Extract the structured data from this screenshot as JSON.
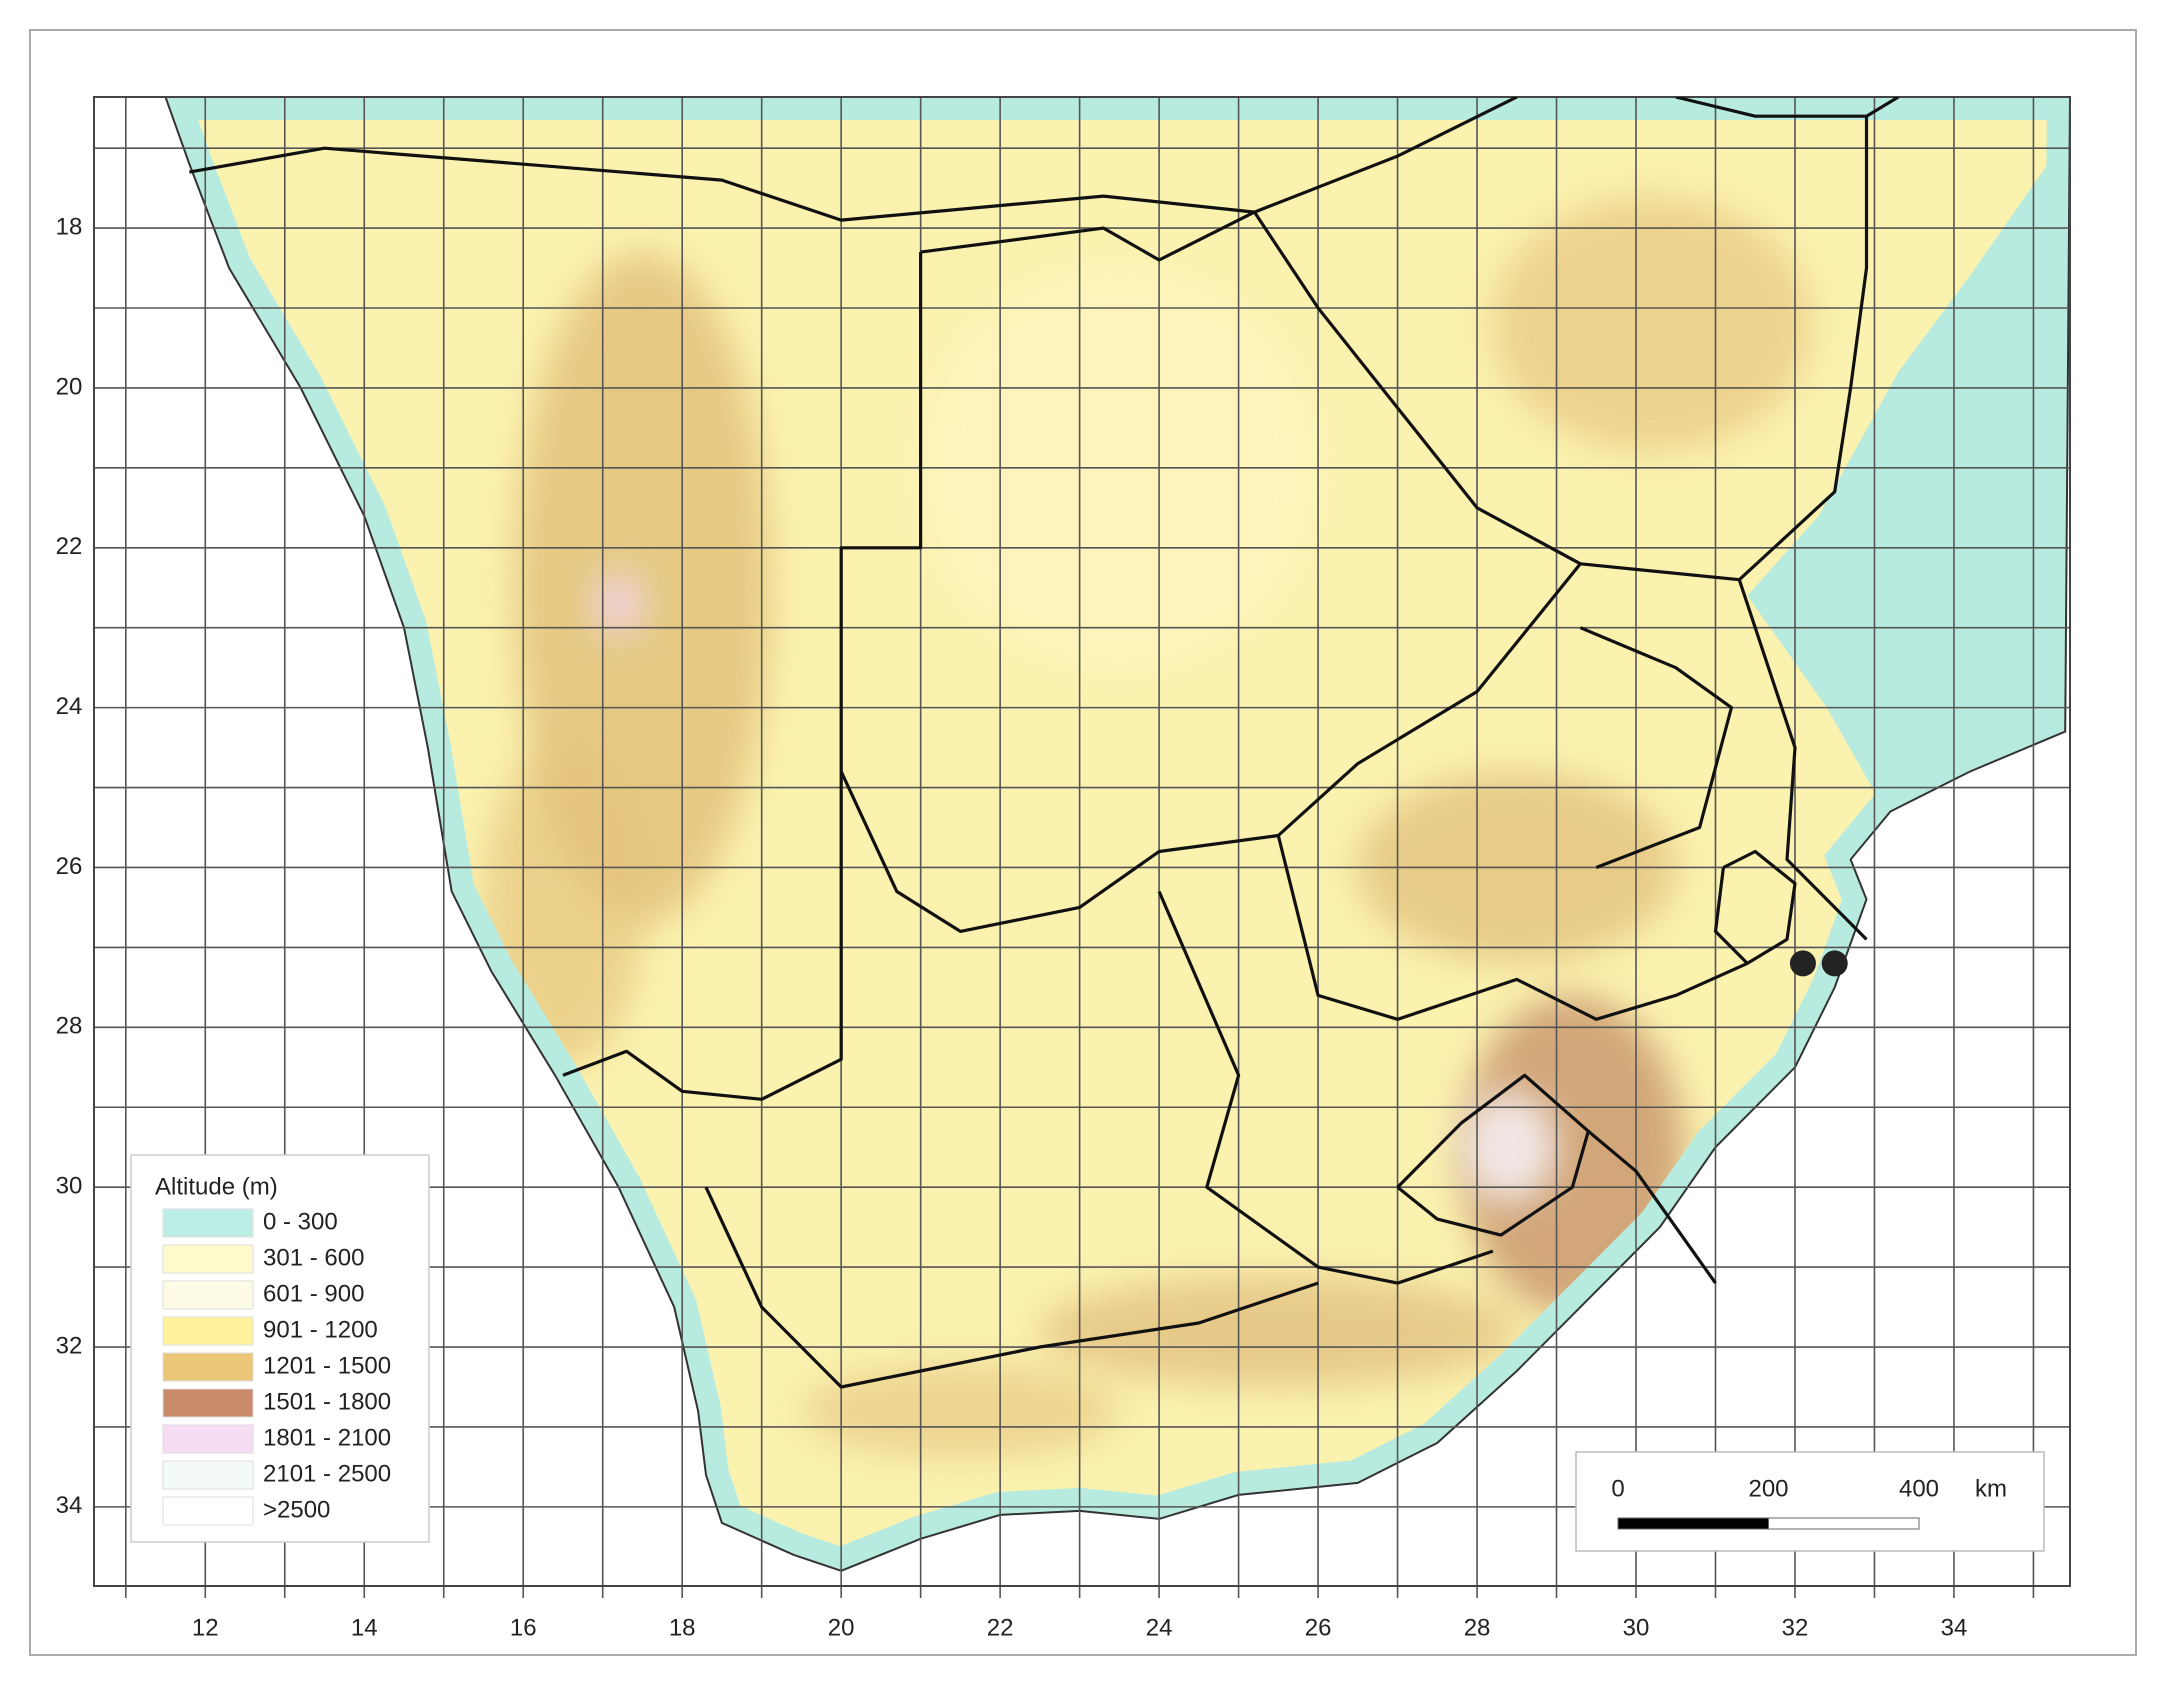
{
  "map": {
    "xlim": [
      10.6,
      35.46
    ],
    "ylim": [
      16.36,
      34.99
    ],
    "xticks": [
      12,
      14,
      16,
      18,
      20,
      22,
      24,
      26,
      28,
      30,
      32,
      34
    ],
    "yticks": [
      18,
      20,
      22,
      24,
      26,
      28,
      30,
      32,
      34
    ],
    "grid": true,
    "legend": {
      "title": "Altitude (m)",
      "items": [
        {
          "label": "0 - 300",
          "color": "#bdeee6"
        },
        {
          "label": "301 - 600",
          "color": "#fffbcc"
        },
        {
          "label": "601 - 900",
          "color": "#fdfbe4"
        },
        {
          "label": "901 - 1200",
          "color": "#fff29c"
        },
        {
          "label": "1201 - 1500",
          "color": "#ebc676"
        },
        {
          "label": "1501 - 1800",
          "color": "#c98a6a"
        },
        {
          "label": "1801 - 2100",
          "color": "#f7dcf3"
        },
        {
          "label": "2101 - 2500",
          "color": "#f4faf6"
        },
        {
          "label": ">2500",
          "color": "#ffffff"
        }
      ]
    },
    "scale_bar": {
      "ticks": [
        0,
        200,
        400
      ],
      "unit": "km"
    }
  }
}
